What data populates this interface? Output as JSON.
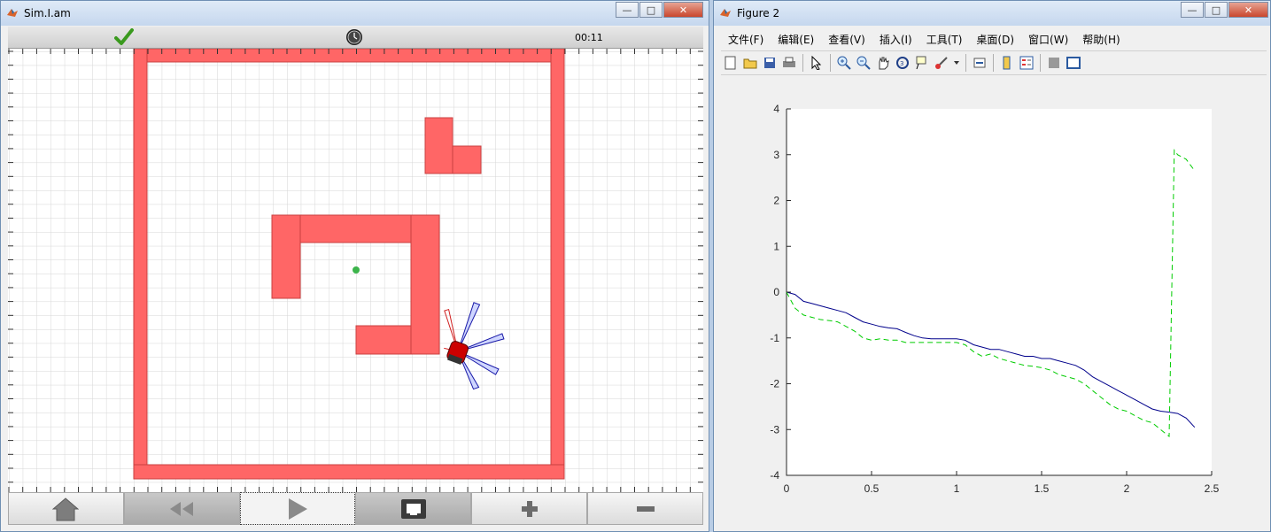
{
  "sim_window": {
    "title": "Sim.I.am",
    "timer": "00:11",
    "status_colors": {
      "check": "#3a9a1e"
    },
    "controls": {
      "home_icon": "home-icon",
      "rewind_icon": "rewind-icon",
      "play_icon": "play-icon",
      "ethernet_icon": "ethernet-icon",
      "zoom_in_icon": "plus-icon",
      "zoom_out_icon": "minus-icon"
    },
    "colors": {
      "wall": "#ff6666",
      "wall_border": "#c94040",
      "goal": "#3cb44b",
      "robot": "#cc0000",
      "sensor": "#1a1aa8",
      "sensor_hit": "#d02020"
    }
  },
  "figure_window": {
    "title": "Figure 2",
    "menu": [
      "文件(F)",
      "编辑(E)",
      "查看(V)",
      "插入(I)",
      "工具(T)",
      "桌面(D)",
      "窗口(W)",
      "帮助(H)"
    ],
    "toolbar_icons": [
      "new-icon",
      "open-icon",
      "save-icon",
      "print-icon",
      "pointer-icon",
      "zoom-in-icon",
      "zoom-out-icon",
      "pan-icon",
      "rotate-icon",
      "datacursor-icon",
      "brush-icon",
      "link-icon",
      "colorbar-icon",
      "legend-icon",
      "hide-plot-tools-icon",
      "show-plot-tools-icon"
    ]
  },
  "chart_data": {
    "type": "line",
    "title": "",
    "xlabel": "",
    "ylabel": "",
    "xlim": [
      0,
      2.5
    ],
    "ylim": [
      -4,
      4
    ],
    "xticks": [
      "0",
      "0.5",
      "1",
      "1.5",
      "2",
      "2.5"
    ],
    "yticks": [
      "4",
      "3",
      "2",
      "1",
      "0",
      "-1",
      "-2",
      "-3",
      "-4"
    ],
    "grid": false,
    "series": [
      {
        "style": "solid",
        "color": "#00008b",
        "x": [
          0,
          0.05,
          0.1,
          0.15,
          0.2,
          0.25,
          0.3,
          0.35,
          0.4,
          0.45,
          0.5,
          0.55,
          0.6,
          0.65,
          0.7,
          0.75,
          0.8,
          0.85,
          0.9,
          0.95,
          1.0,
          1.05,
          1.1,
          1.15,
          1.2,
          1.25,
          1.3,
          1.35,
          1.4,
          1.45,
          1.5,
          1.55,
          1.6,
          1.65,
          1.7,
          1.75,
          1.8,
          1.85,
          1.9,
          1.95,
          2.0,
          2.05,
          2.1,
          2.15,
          2.2,
          2.25,
          2.3,
          2.35,
          2.4
        ],
        "y": [
          0,
          -0.05,
          -0.2,
          -0.25,
          -0.3,
          -0.35,
          -0.4,
          -0.45,
          -0.55,
          -0.65,
          -0.7,
          -0.75,
          -0.78,
          -0.8,
          -0.88,
          -0.95,
          -1.0,
          -1.02,
          -1.02,
          -1.02,
          -1.02,
          -1.05,
          -1.15,
          -1.2,
          -1.25,
          -1.25,
          -1.3,
          -1.35,
          -1.4,
          -1.4,
          -1.45,
          -1.45,
          -1.5,
          -1.55,
          -1.6,
          -1.7,
          -1.85,
          -1.95,
          -2.05,
          -2.15,
          -2.25,
          -2.35,
          -2.45,
          -2.55,
          -2.6,
          -2.62,
          -2.65,
          -2.75,
          -2.95
        ]
      },
      {
        "style": "dashed",
        "color": "#00cc00",
        "x": [
          0,
          0.05,
          0.1,
          0.15,
          0.2,
          0.25,
          0.3,
          0.35,
          0.4,
          0.45,
          0.5,
          0.55,
          0.6,
          0.65,
          0.7,
          0.75,
          0.8,
          0.85,
          0.9,
          0.95,
          1.0,
          1.05,
          1.1,
          1.15,
          1.2,
          1.25,
          1.3,
          1.35,
          1.4,
          1.45,
          1.5,
          1.55,
          1.6,
          1.65,
          1.7,
          1.75,
          1.8,
          1.85,
          1.9,
          1.95,
          2.0,
          2.05,
          2.1,
          2.15,
          2.2,
          2.25,
          2.28,
          2.3,
          2.35,
          2.4
        ],
        "y": [
          0,
          -0.35,
          -0.5,
          -0.55,
          -0.6,
          -0.62,
          -0.65,
          -0.75,
          -0.85,
          -1.0,
          -1.05,
          -1.02,
          -1.05,
          -1.05,
          -1.1,
          -1.1,
          -1.1,
          -1.1,
          -1.1,
          -1.1,
          -1.1,
          -1.15,
          -1.3,
          -1.4,
          -1.35,
          -1.45,
          -1.5,
          -1.55,
          -1.6,
          -1.62,
          -1.65,
          -1.7,
          -1.8,
          -1.85,
          -1.9,
          -2.0,
          -2.15,
          -2.3,
          -2.45,
          -2.55,
          -2.6,
          -2.7,
          -2.8,
          -2.85,
          -3.0,
          -3.15,
          3.1,
          3.0,
          2.9,
          2.65
        ]
      }
    ]
  }
}
